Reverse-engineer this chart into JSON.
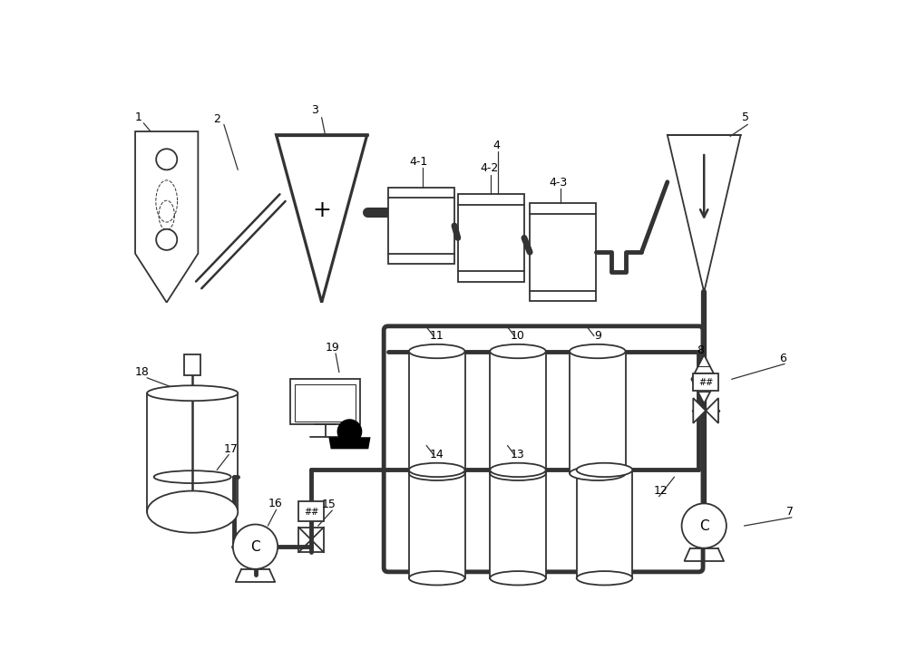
{
  "bg_color": "#ffffff",
  "lc": "#333333",
  "figsize": [
    10.0,
    7.27
  ],
  "dpi": 100,
  "lw": 1.3,
  "lw_thick": 3.5
}
